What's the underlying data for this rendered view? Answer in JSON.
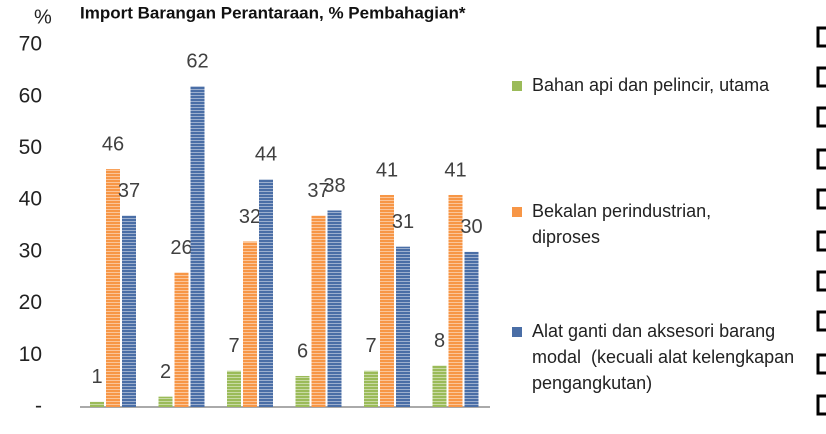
{
  "chart_data": {
    "type": "bar",
    "title": "Import Barangan Perantaraan, % Pembahagian*",
    "y_label": "%",
    "categories": [
      null,
      null,
      null,
      null,
      null,
      null
    ],
    "series": [
      {
        "name": "Bahan api dan pelincir, utama",
        "color": "#9bbb59",
        "values": [
          1,
          2,
          7,
          6,
          7,
          8
        ]
      },
      {
        "name": "Bekalan perindustrian, diproses",
        "color": "#f79646",
        "values": [
          46,
          26,
          32,
          37,
          41,
          41
        ]
      },
      {
        "name": "Alat ganti dan aksesori barang modal  (kecuali alat kelengkapan pengangkutan)",
        "color": "#4a6ea6",
        "values": [
          37,
          62,
          44,
          38,
          31,
          30
        ]
      }
    ],
    "ylim": [
      0,
      70
    ],
    "yticks": [
      {
        "value": 0,
        "label": "-"
      },
      10,
      20,
      30,
      40,
      50,
      60,
      70
    ],
    "grid": false,
    "legend": "right"
  }
}
